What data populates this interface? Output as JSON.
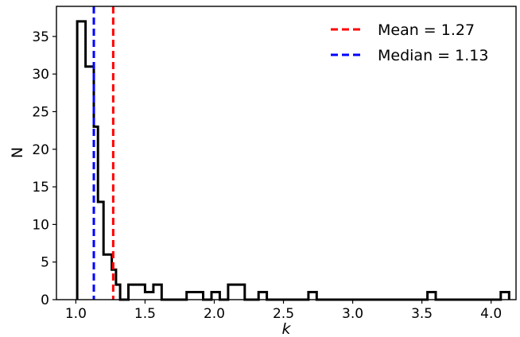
{
  "chart_data": {
    "type": "histogram",
    "xlabel": "k",
    "ylabel": "N",
    "xlim": [
      0.86,
      4.18
    ],
    "ylim": [
      0,
      39
    ],
    "xticks": [
      "1.0",
      "1.5",
      "2.0",
      "2.5",
      "3.0",
      "3.5",
      "4.0"
    ],
    "yticks": [
      "0",
      "5",
      "10",
      "15",
      "20",
      "25",
      "30",
      "35"
    ],
    "grid": false,
    "legend_position": "top-right",
    "bin_edges": [
      1.01,
      1.07,
      1.13,
      1.16,
      1.2,
      1.26,
      1.29,
      1.32,
      1.38,
      1.5,
      1.56,
      1.62,
      1.8,
      1.92,
      1.98,
      2.04,
      2.1,
      2.22,
      2.32,
      2.38,
      2.68,
      2.74,
      3.54,
      3.6,
      4.07,
      4.13
    ],
    "counts": [
      37,
      31,
      23,
      13,
      6,
      4,
      2,
      0,
      2,
      1,
      2,
      0,
      1,
      0,
      1,
      0,
      2,
      0,
      1,
      0,
      1,
      0,
      1,
      0,
      1
    ],
    "hist_color": "#000000",
    "reference_lines": [
      {
        "label": "Mean = 1.27",
        "value": 1.27,
        "color": "#ff0000"
      },
      {
        "label": "Median = 1.13",
        "value": 1.13,
        "color": "#0000ff"
      }
    ]
  }
}
